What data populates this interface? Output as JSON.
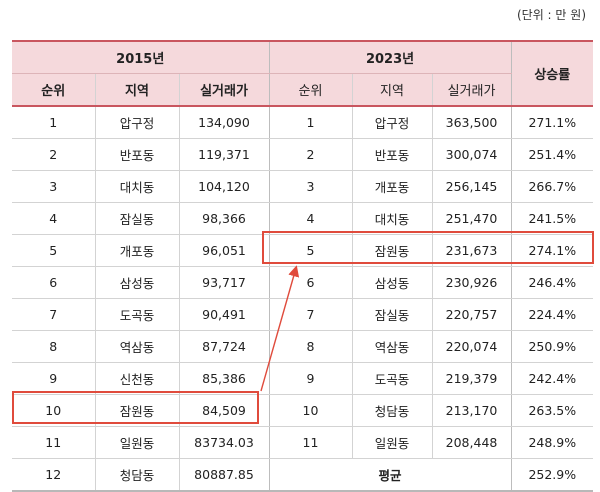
{
  "unit_note": "(단위 : 만 원)",
  "header": {
    "group_2015": "2015년",
    "group_2023": "2023년",
    "rate": "상승률",
    "rank": "순위",
    "region": "지역",
    "price": "실거래가"
  },
  "rows": [
    {
      "r15": "1",
      "reg15": "압구정",
      "p15": "134,090",
      "r23": "1",
      "reg23": "압구정",
      "p23": "363,500",
      "rate": "271.1%"
    },
    {
      "r15": "2",
      "reg15": "반포동",
      "p15": "119,371",
      "r23": "2",
      "reg23": "반포동",
      "p23": "300,074",
      "rate": "251.4%"
    },
    {
      "r15": "3",
      "reg15": "대치동",
      "p15": "104,120",
      "r23": "3",
      "reg23": "개포동",
      "p23": "256,145",
      "rate": "266.7%"
    },
    {
      "r15": "4",
      "reg15": "잠실동",
      "p15": "98,366",
      "r23": "4",
      "reg23": "대치동",
      "p23": "251,470",
      "rate": "241.5%"
    },
    {
      "r15": "5",
      "reg15": "개포동",
      "p15": "96,051",
      "r23": "5",
      "reg23": "잠원동",
      "p23": "231,673",
      "rate": "274.1%"
    },
    {
      "r15": "6",
      "reg15": "삼성동",
      "p15": "93,717",
      "r23": "6",
      "reg23": "삼성동",
      "p23": "230,926",
      "rate": "246.4%"
    },
    {
      "r15": "7",
      "reg15": "도곡동",
      "p15": "90,491",
      "r23": "7",
      "reg23": "잠실동",
      "p23": "220,757",
      "rate": "224.4%"
    },
    {
      "r15": "8",
      "reg15": "역삼동",
      "p15": "87,724",
      "r23": "8",
      "reg23": "역삼동",
      "p23": "220,074",
      "rate": "250.9%"
    },
    {
      "r15": "9",
      "reg15": "신천동",
      "p15": "85,386",
      "r23": "9",
      "reg23": "도곡동",
      "p23": "219,379",
      "rate": "242.4%"
    },
    {
      "r15": "10",
      "reg15": "잠원동",
      "p15": "84,509",
      "r23": "10",
      "reg23": "청담동",
      "p23": "213,170",
      "rate": "263.5%"
    },
    {
      "r15": "11",
      "reg15": "일원동",
      "p15": "83734.03",
      "r23": "11",
      "reg23": "일원동",
      "p23": "208,448",
      "rate": "248.9%"
    }
  ],
  "last_row": {
    "r15": "12",
    "reg15": "청담동",
    "p15": "80887.85",
    "avg_label": "평균",
    "rate": "252.9%"
  }
}
